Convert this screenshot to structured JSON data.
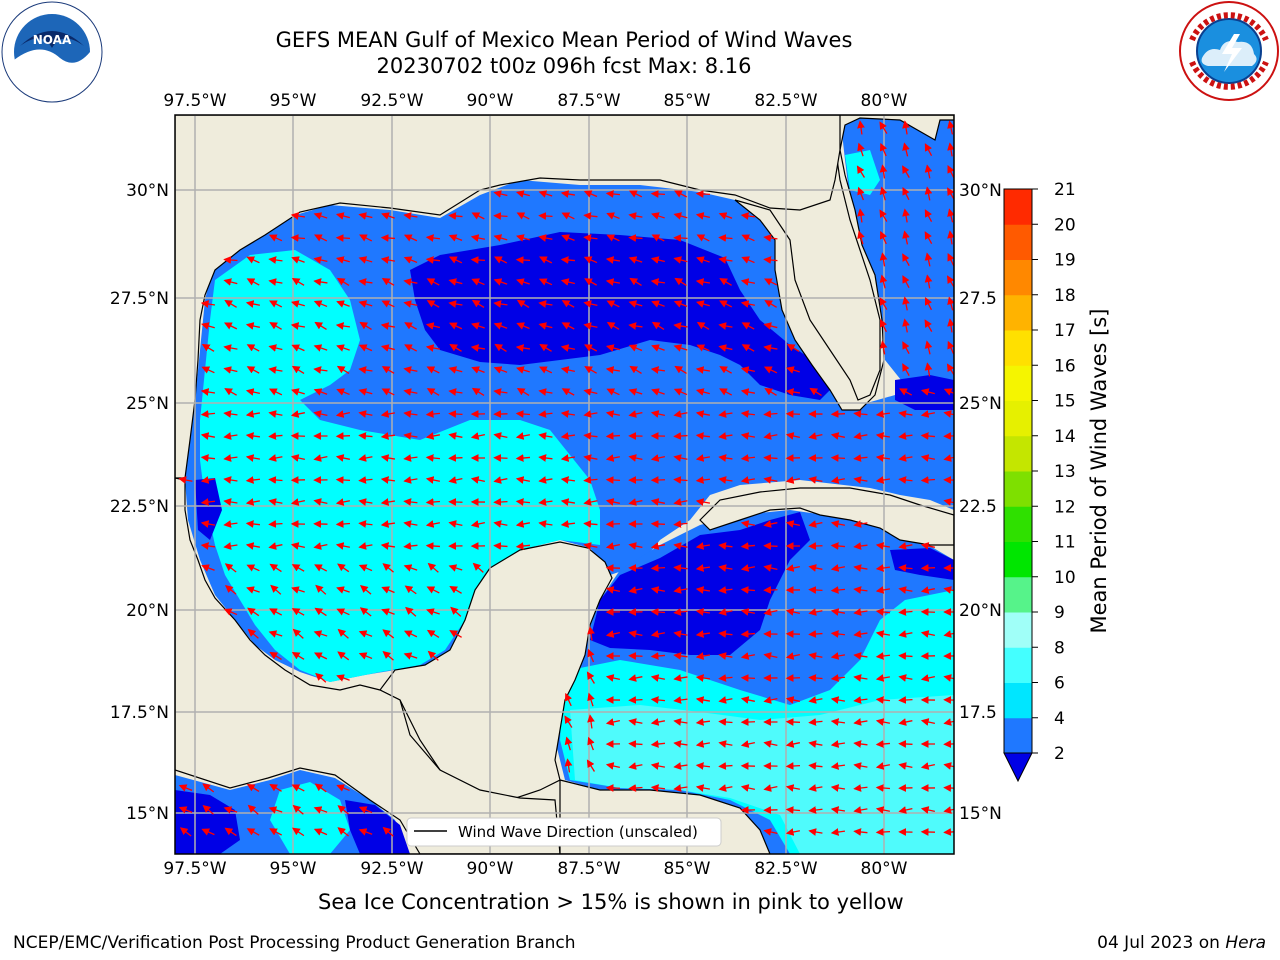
{
  "header": {
    "title_line1": "GEFS MEAN Gulf of Mexico Mean Period of Wind Waves",
    "title_line2": "20230702 t00z 096h fcst   Max: 8.16"
  },
  "map": {
    "lon_ticks": [
      "97.5°W",
      "95°W",
      "92.5°W",
      "90°W",
      "87.5°W",
      "85°W",
      "82.5°W",
      "80°W"
    ],
    "lat_ticks_left": [
      "30°N",
      "27.5°N",
      "25°N",
      "22.5°N",
      "20°N",
      "17.5°N",
      "15°N"
    ],
    "lat_ticks_right": [
      "30°N",
      "27.5",
      "25°N",
      "22.5",
      "20°N",
      "17.5",
      "15°N"
    ],
    "legend_label": "Wind Wave Direction (unscaled)",
    "colors": {
      "land": "#efecdc",
      "period_2_4": "#1f78ff",
      "period_lt_2": "#0000e6",
      "period_4_6": "#00ffff",
      "period_6_8": "#4ffbfc",
      "arrows": "#ff0000",
      "grid": "#b0b0b0"
    }
  },
  "colorbar": {
    "label": "Mean Period of Wind Waves [s]",
    "ticks": [
      "2",
      "4",
      "6",
      "8",
      "9",
      "10",
      "11",
      "12",
      "13",
      "14",
      "15",
      "16",
      "17",
      "18",
      "19",
      "20",
      "21"
    ],
    "colors": [
      "#1f78ff",
      "#00e6ff",
      "#44ffff",
      "#a0fff8",
      "#56f38a",
      "#00e600",
      "#2fe000",
      "#7ee000",
      "#c4e600",
      "#e6f000",
      "#f5f500",
      "#ffe000",
      "#ffb300",
      "#ff8800",
      "#ff5a00",
      "#ff2a00"
    ],
    "extend_color": "#0000e6"
  },
  "note": "Sea Ice Concentration > 15% is shown in pink to yellow",
  "footer": {
    "left": "NCEP/EMC/Verification Post Processing Product Generation Branch",
    "right_date": "04 Jul 2023 on ",
    "right_host": "Hera"
  }
}
